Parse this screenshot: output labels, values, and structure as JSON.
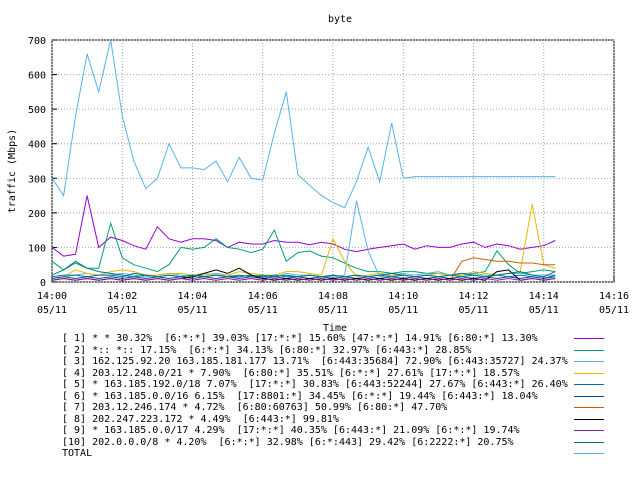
{
  "chart_data": {
    "type": "line",
    "title": "byte",
    "xlabel": "Time",
    "ylabel": "traffic (Mbps)",
    "ylim": [
      0,
      700
    ],
    "yticks": [
      0,
      100,
      200,
      300,
      400,
      500,
      600,
      700
    ],
    "xlim_minutes": [
      0,
      16
    ],
    "xticks": [
      {
        "time": "14:00",
        "date": "05/11"
      },
      {
        "time": "14:02",
        "date": "05/11"
      },
      {
        "time": "14:04",
        "date": "05/11"
      },
      {
        "time": "14:06",
        "date": "05/11"
      },
      {
        "time": "14:08",
        "date": "05/11"
      },
      {
        "time": "14:10",
        "date": "05/11"
      },
      {
        "time": "14:12",
        "date": "05/11"
      },
      {
        "time": "14:14",
        "date": "05/11"
      },
      {
        "time": "14:16",
        "date": "05/11"
      }
    ],
    "x": [
      0,
      0.33,
      0.67,
      1.0,
      1.33,
      1.67,
      2.0,
      2.33,
      2.67,
      3.0,
      3.33,
      3.67,
      4.0,
      4.33,
      4.67,
      5.0,
      5.33,
      5.67,
      6.0,
      6.33,
      6.67,
      7.0,
      7.33,
      7.67,
      8.0,
      8.33,
      8.67,
      9.0,
      9.33,
      9.67,
      10.0,
      10.33,
      10.67,
      11.0,
      11.33,
      11.67,
      12.0,
      12.33,
      12.67,
      13.0,
      13.33,
      13.67,
      14.0,
      14.33
    ],
    "legend_position": "bottom",
    "series": [
      {
        "name": "[ 1] * * 30.32%  [6:*:*] 39.03% [17:*:*] 15.60% [47:*:*] 14.91% [6:80:*] 13.30%",
        "color": "#9400d3",
        "values": [
          100,
          75,
          80,
          250,
          100,
          130,
          120,
          105,
          95,
          160,
          125,
          115,
          125,
          125,
          120,
          100,
          115,
          110,
          110,
          120,
          115,
          115,
          108,
          115,
          110,
          95,
          88,
          95,
          100,
          105,
          110,
          95,
          105,
          100,
          100,
          110,
          115,
          100,
          110,
          105,
          95,
          100,
          105,
          120
        ]
      },
      {
        "name": "[ 2] *:: *:: 17.15%  [6:*:*] 34.13% [6:80:*] 32.97% [6:443:*] 28.85%",
        "color": "#009e73",
        "values": [
          60,
          35,
          55,
          40,
          40,
          170,
          70,
          50,
          40,
          30,
          50,
          100,
          95,
          100,
          125,
          100,
          95,
          85,
          95,
          150,
          60,
          85,
          90,
          75,
          70,
          55,
          40,
          30,
          30,
          25,
          30,
          30,
          25,
          25,
          20,
          20,
          25,
          30,
          90,
          50,
          25,
          30,
          35,
          30
        ]
      },
      {
        "name": "[ 3] 162.125.92.20 163.185.181.177 13.71%  [6:443:35684] 72.90% [6:443:35727] 24.37%",
        "color": "#56b4e9",
        "values": [
          10,
          15,
          20,
          25,
          20,
          20,
          25,
          20,
          15,
          20,
          25,
          20,
          15,
          20,
          25,
          20,
          15,
          20,
          15,
          15,
          25,
          20,
          20,
          15,
          15,
          20,
          235,
          90,
          15,
          20,
          25,
          20,
          25,
          30,
          20,
          25,
          25,
          20,
          20,
          25,
          25,
          20,
          20,
          20
        ]
      },
      {
        "name": "[ 4] 203.12.248.0/21 * 7.90%  [6:80:*] 35.51% [6:*:*] 27.61% [17:*:*] 18.57%",
        "color": "#e6b800",
        "values": [
          10,
          15,
          35,
          25,
          20,
          30,
          35,
          30,
          20,
          20,
          25,
          25,
          20,
          25,
          20,
          20,
          30,
          25,
          20,
          20,
          30,
          30,
          25,
          20,
          125,
          60,
          15,
          20,
          25,
          20,
          20,
          15,
          20,
          25,
          20,
          20,
          30,
          25,
          20,
          25,
          30,
          225,
          50,
          40
        ]
      },
      {
        "name": "[ 5] * 163.185.192.0/18 7.07%  [17:*:*] 30.83% [6:443:52244] 27.67% [6:443:*] 26.40%",
        "color": "#0072b2",
        "values": [
          15,
          20,
          20,
          15,
          20,
          20,
          15,
          25,
          20,
          15,
          20,
          15,
          20,
          15,
          20,
          15,
          15,
          20,
          15,
          20,
          15,
          15,
          20,
          15,
          20,
          15,
          20,
          15,
          20,
          25,
          20,
          15,
          20,
          15,
          20,
          25,
          20,
          15,
          20,
          15,
          20,
          15,
          10,
          20
        ]
      },
      {
        "name": "[ 6] * 163.185.0.0/16 6.15%  [17:8801:*] 34.45% [6:*:*] 19.44% [6:443:*] 18.04%",
        "color": "#0d47a1",
        "values": [
          10,
          15,
          10,
          15,
          10,
          15,
          10,
          15,
          10,
          15,
          10,
          15,
          10,
          15,
          10,
          15,
          10,
          15,
          10,
          15,
          10,
          15,
          10,
          15,
          10,
          15,
          10,
          15,
          10,
          15,
          10,
          15,
          10,
          15,
          10,
          15,
          10,
          15,
          10,
          15,
          10,
          15,
          10,
          15
        ]
      },
      {
        "name": "[ 7] 203.12.246.174 * 4.72%  [6:80:60763] 50.99% [6:80:*] 47.70%",
        "color": "#d55e00",
        "values": [
          5,
          10,
          5,
          10,
          5,
          10,
          5,
          10,
          5,
          10,
          5,
          10,
          5,
          10,
          5,
          10,
          5,
          10,
          5,
          10,
          5,
          10,
          5,
          10,
          5,
          10,
          5,
          10,
          5,
          10,
          5,
          10,
          5,
          10,
          5,
          60,
          70,
          65,
          60,
          60,
          55,
          55,
          50,
          50
        ]
      },
      {
        "name": "[ 8] 202.247.223.172 * 4.49%  [6:443:*] 99.81%",
        "color": "#000000",
        "values": [
          5,
          10,
          5,
          10,
          5,
          10,
          5,
          10,
          5,
          10,
          5,
          10,
          15,
          25,
          35,
          25,
          40,
          20,
          10,
          5,
          10,
          5,
          10,
          5,
          10,
          5,
          10,
          5,
          10,
          5,
          10,
          5,
          10,
          5,
          10,
          5,
          10,
          5,
          30,
          35,
          5,
          10,
          5,
          10
        ]
      },
      {
        "name": "[ 9] * 163.185.0.0/17 4.29%  [17:*:*] 40.35% [6:443:*] 21.09% [6:*:*] 19.74%",
        "color": "#8e24aa",
        "values": [
          5,
          10,
          5,
          10,
          5,
          10,
          5,
          10,
          5,
          10,
          5,
          10,
          5,
          10,
          5,
          10,
          5,
          10,
          5,
          10,
          5,
          10,
          5,
          10,
          5,
          10,
          5,
          10,
          5,
          10,
          5,
          10,
          5,
          10,
          5,
          10,
          5,
          10,
          5,
          10,
          5,
          10,
          5,
          10
        ]
      },
      {
        "name": "[10] 202.0.0.0/8 * 4.20%  [6:*:*] 32.98% [6:*:443] 29.42% [6:2222:*] 20.75%",
        "color": "#00796b",
        "values": [
          20,
          35,
          60,
          40,
          30,
          25,
          20,
          15,
          20,
          15,
          20,
          15,
          20,
          15,
          20,
          15,
          20,
          15,
          20,
          15,
          20,
          15,
          20,
          15,
          20,
          15,
          20,
          15,
          20,
          15,
          20,
          15,
          20,
          15,
          20,
          15,
          20,
          15,
          20,
          25,
          30,
          20,
          15,
          30
        ]
      },
      {
        "name": "TOTAL",
        "color": "#56b4e9",
        "values": [
          300,
          250,
          480,
          660,
          550,
          700,
          480,
          350,
          270,
          300,
          400,
          330,
          330,
          325,
          350,
          290,
          360,
          300,
          295,
          430,
          550,
          310,
          280,
          250,
          230,
          215,
          290,
          390,
          290,
          460,
          300,
          305,
          305,
          305,
          305,
          305,
          305,
          305,
          305,
          305,
          305,
          305,
          305,
          305
        ]
      }
    ]
  }
}
